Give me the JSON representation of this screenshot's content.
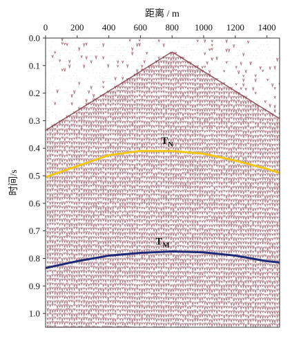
{
  "chart_data": {
    "type": "seismic-section",
    "xlabel": "距离 / m",
    "ylabel": "时间/s",
    "x_axis_position": "top",
    "xlim": [
      0,
      1480
    ],
    "ylim": [
      0.0,
      1.05
    ],
    "y_inverted": true,
    "xticks": [
      "0",
      "200",
      "400",
      "600",
      "800",
      "1000",
      "1200",
      "1400"
    ],
    "yticks": [
      "0.0",
      "0.1",
      "0.2",
      "0.3",
      "0.4",
      "0.5",
      "0.6",
      "0.7",
      "0.8",
      "0.9",
      "1.0"
    ],
    "background_pattern": "wiggle traces with dark red-brown peaks, direct-wave hyperbola with apex near 800 m, 0.05 s",
    "series": [
      {
        "name": "TN",
        "label_main": "T",
        "label_sub": "N",
        "color": "#f3c614",
        "x": [
          0,
          200,
          400,
          600,
          800,
          1000,
          1200,
          1400,
          1480
        ],
        "y": [
          0.505,
          0.465,
          0.425,
          0.41,
          0.41,
          0.42,
          0.445,
          0.475,
          0.49
        ]
      },
      {
        "name": "TM",
        "label_main": "T",
        "label_sub": "M",
        "color": "#1d2a7a",
        "x": [
          0,
          200,
          400,
          600,
          800,
          1000,
          1200,
          1400,
          1480
        ],
        "y": [
          0.835,
          0.81,
          0.79,
          0.78,
          0.775,
          0.778,
          0.79,
          0.81,
          0.815
        ]
      }
    ]
  }
}
